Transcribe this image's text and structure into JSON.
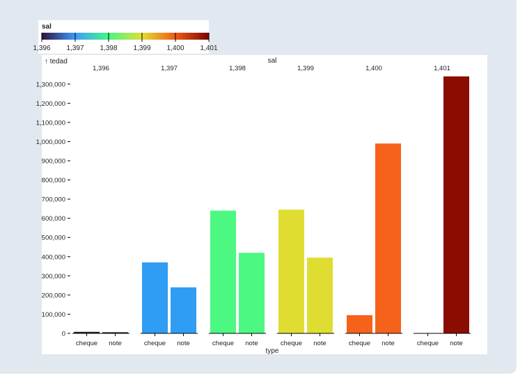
{
  "legend": {
    "title": "sal",
    "ticks": [
      "1,396",
      "1,397",
      "1,398",
      "1,399",
      "1,400",
      "1,401"
    ],
    "colors": [
      "#30123b",
      "#3e9bfe",
      "#46f884",
      "#e1dd37",
      "#f05b12",
      "#7a0403"
    ]
  },
  "chart_data": {
    "type": "bar",
    "facet_field": "sal",
    "facet_labels": [
      "1,396",
      "1,397",
      "1,398",
      "1,399",
      "1,400",
      "1,401"
    ],
    "categories": [
      "cheque",
      "note"
    ],
    "values": [
      [
        8000,
        6000
      ],
      [
        370000,
        240000
      ],
      [
        640000,
        420000
      ],
      [
        645000,
        395000
      ],
      [
        95000,
        990000
      ],
      [
        0,
        1340000
      ]
    ],
    "colors": [
      "#222222",
      "#2f9df4",
      "#4cf882",
      "#dfdd32",
      "#f6621a",
      "#8b0c00"
    ],
    "yaxis_ticks": [
      "0",
      "100,000",
      "200,000",
      "300,000",
      "400,000",
      "500,000",
      "600,000",
      "700,000",
      "800,000",
      "900,000",
      "1,000,000",
      "1,100,000",
      "1,200,000",
      "1,300,000"
    ],
    "y_tick_values": [
      0,
      100000,
      200000,
      300000,
      400000,
      500000,
      600000,
      700000,
      800000,
      900000,
      1000000,
      1100000,
      1200000,
      1300000
    ],
    "ylim": [
      0,
      1350000
    ],
    "ylabel": "↑ tedad",
    "xlabel": "type",
    "grid": false
  }
}
